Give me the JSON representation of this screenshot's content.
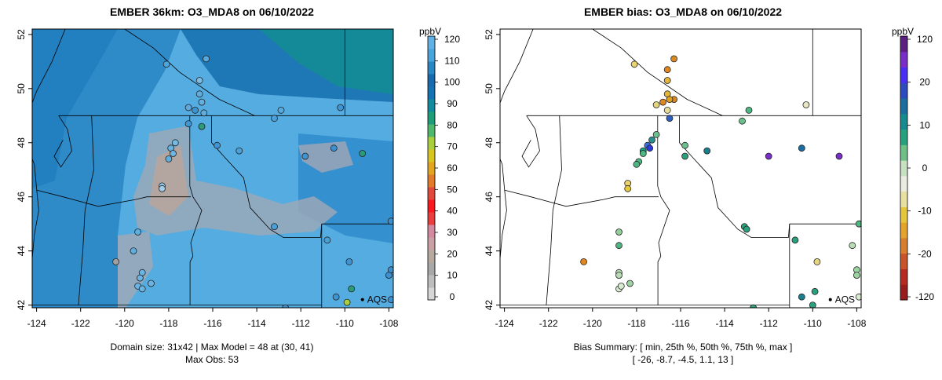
{
  "left_panel": {
    "title": "EMBER 36km: O3_MDA8 on 06/10/2022",
    "caption_line1": "Domain size: 31x42 | Max Model = 48 at (30, 41)",
    "caption_line2": "Max Obs: 53",
    "colorbar_unit": "ppbV",
    "colorbar_ticks": [
      "120",
      "110",
      "100",
      "90",
      "80",
      "70",
      "60",
      "50",
      "40",
      "30",
      "20",
      "10",
      "0"
    ],
    "colorbar_colors": [
      "#d7d7d7",
      "#bdbdbd",
      "#a8a8a8",
      "#b8a9a0",
      "#c9a0a3",
      "#d489a0",
      "#ea3d3d",
      "#f7191f",
      "#e1493d",
      "#e07c2c",
      "#e2a521",
      "#d9c521",
      "#a9cf3e",
      "#4fb86d",
      "#1f9d79",
      "#138b9e",
      "#1573b3",
      "#176aae",
      "#2b86c4",
      "#49a4dc",
      "#62b1e4"
    ],
    "station_label": "AQS"
  },
  "right_panel": {
    "title": "EMBER bias: O3_MDA8 on 06/10/2022",
    "caption_line1": "Bias Summary: [ min, 25th %, 50th %, 75th %, max ]",
    "caption_line2": "[ -26,   -8.7,   -4.5,   1.1,   13 ]",
    "colorbar_unit": "ppbV",
    "colorbar_ticks": [
      "120",
      "20",
      "10",
      "0",
      "-10",
      "-20",
      "-120"
    ],
    "colorbar_colors": [
      "#9a1b1b",
      "#b52b22",
      "#c7542b",
      "#d57f2f",
      "#e2a42d",
      "#e4c63e",
      "#e7e0a0",
      "#e9ecdf",
      "#c7e0c0",
      "#6fbf88",
      "#2aa07e",
      "#178a8f",
      "#1a6e9c",
      "#2d4bbd",
      "#4b2ff0",
      "#7a2ec8",
      "#5b1f82"
    ],
    "station_label": "AQS"
  },
  "axes": {
    "x_ticks": [
      "-124",
      "-122",
      "-120",
      "-118",
      "-116",
      "-114",
      "-112",
      "-110",
      "-108"
    ],
    "y_ticks": [
      "52",
      "50",
      "48",
      "46",
      "44",
      "42"
    ]
  },
  "map_data": {
    "lon_range": [
      -124.2,
      -107.8
    ],
    "lat_range": [
      41.9,
      52.2
    ],
    "aqs_site": {
      "lon": -109.2,
      "lat": 42.2
    },
    "left_obs": [
      {
        "lon": -118.1,
        "lat": 50.9,
        "c": "#4aa6dd"
      },
      {
        "lon": -116.6,
        "lat": 50.3,
        "c": "#7fbce3"
      },
      {
        "lon": -116.3,
        "lat": 51.1,
        "c": "#5aa9dd"
      },
      {
        "lon": -116.6,
        "lat": 49.8,
        "c": "#61ade0"
      },
      {
        "lon": -116.5,
        "lat": 49.5,
        "c": "#64b0e0"
      },
      {
        "lon": -117.1,
        "lat": 49.3,
        "c": "#5eaadf"
      },
      {
        "lon": -116.8,
        "lat": 49.2,
        "c": "#3c96d2"
      },
      {
        "lon": -116.4,
        "lat": 49.1,
        "c": "#5eadde"
      },
      {
        "lon": -116.5,
        "lat": 48.6,
        "c": "#2c9b7a"
      },
      {
        "lon": -117.1,
        "lat": 48.7,
        "c": "#3f98d5"
      },
      {
        "lon": -117.7,
        "lat": 48.0,
        "c": "#74bce6"
      },
      {
        "lon": -117.9,
        "lat": 47.8,
        "c": "#66b3e2"
      },
      {
        "lon": -117.8,
        "lat": 47.6,
        "c": "#6cb6e4"
      },
      {
        "lon": -118.0,
        "lat": 47.4,
        "c": "#5eaee0"
      },
      {
        "lon": -118.3,
        "lat": 46.4,
        "c": "#8ec6e9"
      },
      {
        "lon": -118.3,
        "lat": 46.3,
        "c": "#9fcdea"
      },
      {
        "lon": -115.8,
        "lat": 47.9,
        "c": "#3f95d3"
      },
      {
        "lon": -114.8,
        "lat": 47.7,
        "c": "#4aa0d8"
      },
      {
        "lon": -113.2,
        "lat": 48.9,
        "c": "#4aa0d8"
      },
      {
        "lon": -112.9,
        "lat": 49.2,
        "c": "#57a8dc"
      },
      {
        "lon": -111.8,
        "lat": 47.5,
        "c": "#3f95d3"
      },
      {
        "lon": -110.2,
        "lat": 49.3,
        "c": "#3f95d3"
      },
      {
        "lon": -110.5,
        "lat": 47.8,
        "c": "#3c8fd0"
      },
      {
        "lon": -109.2,
        "lat": 47.6,
        "c": "#2c9b7a"
      },
      {
        "lon": -113.2,
        "lat": 44.9,
        "c": "#4aa0d8"
      },
      {
        "lon": -110.8,
        "lat": 44.4,
        "c": "#4aa0d8"
      },
      {
        "lon": -109.8,
        "lat": 43.6,
        "c": "#3f95d3"
      },
      {
        "lon": -119.4,
        "lat": 44.7,
        "c": "#5eaee0"
      },
      {
        "lon": -119.6,
        "lat": 44.0,
        "c": "#5eaee0"
      },
      {
        "lon": -120.4,
        "lat": 43.6,
        "c": "#a0a0a0"
      },
      {
        "lon": -119.2,
        "lat": 43.2,
        "c": "#6ab3e2"
      },
      {
        "lon": -119.3,
        "lat": 43.0,
        "c": "#6ab3e2"
      },
      {
        "lon": -118.8,
        "lat": 42.8,
        "c": "#6ab3e2"
      },
      {
        "lon": -119.4,
        "lat": 42.7,
        "c": "#6ab3e2"
      },
      {
        "lon": -119.2,
        "lat": 42.6,
        "c": "#6ab3e2"
      },
      {
        "lon": -110.4,
        "lat": 42.3,
        "c": "#3f95d3"
      },
      {
        "lon": -109.9,
        "lat": 42.1,
        "c": "#a9cf3e"
      },
      {
        "lon": -109.7,
        "lat": 42.6,
        "c": "#2c9b7a"
      },
      {
        "lon": -107.9,
        "lat": 45.1,
        "c": "#3c8fd0"
      },
      {
        "lon": -107.9,
        "lat": 43.3,
        "c": "#3c8fd0"
      },
      {
        "lon": -108.0,
        "lat": 43.1,
        "c": "#3c8fd0"
      },
      {
        "lon": -107.9,
        "lat": 42.2,
        "c": "#3c8fd0"
      },
      {
        "lon": -112.7,
        "lat": 41.9,
        "c": "#3c8fd0"
      }
    ],
    "right_obs": [
      {
        "lon": -118.1,
        "lat": 50.9,
        "c": "#e8d36e"
      },
      {
        "lon": -116.6,
        "lat": 50.7,
        "c": "#e0861f"
      },
      {
        "lon": -116.3,
        "lat": 51.1,
        "c": "#d9891f"
      },
      {
        "lon": -116.6,
        "lat": 50.3,
        "c": "#e6b43a"
      },
      {
        "lon": -116.6,
        "lat": 49.8,
        "c": "#e6b43a"
      },
      {
        "lon": -116.3,
        "lat": 49.6,
        "c": "#d9891f"
      },
      {
        "lon": -116.5,
        "lat": 49.6,
        "c": "#e0a024"
      },
      {
        "lon": -117.1,
        "lat": 49.4,
        "c": "#e6d57f"
      },
      {
        "lon": -116.8,
        "lat": 49.5,
        "c": "#e0861f"
      },
      {
        "lon": -116.6,
        "lat": 49.2,
        "c": "#e8dc9b"
      },
      {
        "lon": -116.5,
        "lat": 48.9,
        "c": "#2d5ec0"
      },
      {
        "lon": -117.1,
        "lat": 48.3,
        "c": "#6cc08d"
      },
      {
        "lon": -117.3,
        "lat": 48.1,
        "c": "#2a8f92"
      },
      {
        "lon": -117.5,
        "lat": 47.9,
        "c": "#3a6fe0"
      },
      {
        "lon": -117.4,
        "lat": 47.8,
        "c": "#2f3bd6"
      },
      {
        "lon": -117.7,
        "lat": 47.7,
        "c": "#17a082"
      },
      {
        "lon": -117.9,
        "lat": 47.3,
        "c": "#4fb583"
      },
      {
        "lon": -118.0,
        "lat": 47.2,
        "c": "#4fb583"
      },
      {
        "lon": -117.7,
        "lat": 47.6,
        "c": "#4fb583"
      },
      {
        "lon": -118.4,
        "lat": 46.5,
        "c": "#e8d36e"
      },
      {
        "lon": -118.4,
        "lat": 46.3,
        "c": "#e6c83d"
      },
      {
        "lon": -115.8,
        "lat": 47.9,
        "c": "#6cc08d"
      },
      {
        "lon": -115.8,
        "lat": 47.5,
        "c": "#2aa07e"
      },
      {
        "lon": -114.8,
        "lat": 47.7,
        "c": "#1a7f8d"
      },
      {
        "lon": -113.2,
        "lat": 48.8,
        "c": "#6cc08d"
      },
      {
        "lon": -112.9,
        "lat": 49.2,
        "c": "#4fb583"
      },
      {
        "lon": -112.0,
        "lat": 47.5,
        "c": "#7a2ec8"
      },
      {
        "lon": -110.3,
        "lat": 49.4,
        "c": "#e8e6c4"
      },
      {
        "lon": -110.5,
        "lat": 47.8,
        "c": "#1a6ea6"
      },
      {
        "lon": -108.8,
        "lat": 47.5,
        "c": "#7a2ec8"
      },
      {
        "lon": -113.1,
        "lat": 44.9,
        "c": "#2aa07e"
      },
      {
        "lon": -113.0,
        "lat": 44.8,
        "c": "#2aa07e"
      },
      {
        "lon": -110.8,
        "lat": 44.4,
        "c": "#2aa07e"
      },
      {
        "lon": -109.8,
        "lat": 43.6,
        "c": "#e6d57f"
      },
      {
        "lon": -118.8,
        "lat": 44.7,
        "c": "#8fcf99"
      },
      {
        "lon": -118.8,
        "lat": 44.2,
        "c": "#4fb583"
      },
      {
        "lon": -120.4,
        "lat": 43.6,
        "c": "#e0861f"
      },
      {
        "lon": -118.8,
        "lat": 43.2,
        "c": "#b7dcb4"
      },
      {
        "lon": -118.8,
        "lat": 43.1,
        "c": "#b7dcb4"
      },
      {
        "lon": -118.3,
        "lat": 42.8,
        "c": "#9bd3a1"
      },
      {
        "lon": -118.8,
        "lat": 42.6,
        "c": "#d6ebcf"
      },
      {
        "lon": -118.7,
        "lat": 42.7,
        "c": "#d6ebcf"
      },
      {
        "lon": -109.9,
        "lat": 42.5,
        "c": "#2aa07e"
      },
      {
        "lon": -110.5,
        "lat": 42.3,
        "c": "#1a7f8d"
      },
      {
        "lon": -110.0,
        "lat": 42.0,
        "c": "#2aa07e"
      },
      {
        "lon": -107.9,
        "lat": 45.0,
        "c": "#4fb583"
      },
      {
        "lon": -108.2,
        "lat": 44.2,
        "c": "#b7dcb4"
      },
      {
        "lon": -108.0,
        "lat": 43.3,
        "c": "#9bd3a1"
      },
      {
        "lon": -108.0,
        "lat": 43.1,
        "c": "#9bd3a1"
      },
      {
        "lon": -107.9,
        "lat": 42.3,
        "c": "#d6ebcf"
      },
      {
        "lon": -112.7,
        "lat": 41.9,
        "c": "#2aa07e"
      }
    ]
  }
}
